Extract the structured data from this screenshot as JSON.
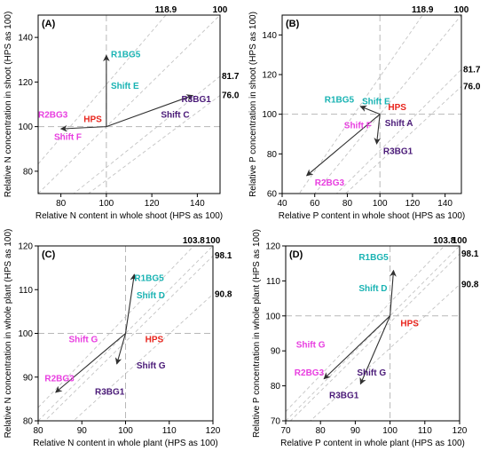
{
  "colors": {
    "cyan": "#19b3b3",
    "magenta": "#e83ee0",
    "red": "#e8241c",
    "purple": "#4a1a78",
    "ref_line": "#c4c4c4",
    "arrow": "#303030"
  },
  "chart_data": [
    {
      "type": "scatter",
      "panel_label": "(A)",
      "xlabel": "Relative N content in whole shoot (HPS as 100)",
      "ylabel": "Relative N concentration in shoot (HPS as 100)",
      "xlim": [
        70,
        150
      ],
      "ylim": [
        70,
        150
      ],
      "xticks": [
        80,
        100,
        120,
        140
      ],
      "yticks": [
        80,
        100,
        120,
        140
      ],
      "origin": [
        100,
        100
      ],
      "ratio_lines": [
        {
          "label": "76.0",
          "ratio": 76.0
        },
        {
          "label": "81.7",
          "ratio": 81.7
        },
        {
          "label": "100",
          "ratio": 100
        },
        {
          "label": "118.9",
          "ratio": 118.9
        }
      ],
      "vectors": [
        {
          "name": "R1BG5",
          "x": 100,
          "y": 132
        },
        {
          "name": "R2BG3",
          "x": 80,
          "y": 99
        },
        {
          "name": "R3BG1",
          "x": 138,
          "y": 114
        }
      ],
      "annotations": [
        {
          "text": "R1BG5",
          "x": 102,
          "y": 131,
          "color": "cyan",
          "anchor": "start"
        },
        {
          "text": "Shift E",
          "x": 102,
          "y": 117,
          "color": "cyan",
          "anchor": "start"
        },
        {
          "text": "HPS",
          "x": 90,
          "y": 102,
          "color": "red",
          "anchor": "start"
        },
        {
          "text": "R2BG3",
          "x": 70,
          "y": 104,
          "color": "magenta",
          "anchor": "start"
        },
        {
          "text": "Shift F",
          "x": 77,
          "y": 94,
          "color": "magenta",
          "anchor": "start"
        },
        {
          "text": "Shift C",
          "x": 124,
          "y": 104,
          "color": "purple",
          "anchor": "start"
        },
        {
          "text": "R3BG1",
          "x": 133,
          "y": 111,
          "color": "purple",
          "anchor": "start"
        }
      ]
    },
    {
      "type": "scatter",
      "panel_label": "(B)",
      "xlabel": "Relative P content in whole shoot (HPS as 100)",
      "ylabel": "Relative P concentration in shoot (HPS as 100)",
      "xlim": [
        40,
        150
      ],
      "ylim": [
        60,
        150
      ],
      "xticks": [
        40,
        60,
        80,
        100,
        120,
        140
      ],
      "yticks": [
        60,
        80,
        100,
        120,
        140
      ],
      "origin": [
        100,
        100
      ],
      "ratio_lines": [
        {
          "label": "76.0",
          "ratio": 76.0
        },
        {
          "label": "81.7",
          "ratio": 81.7
        },
        {
          "label": "100",
          "ratio": 100
        },
        {
          "label": "118.9",
          "ratio": 118.9
        }
      ],
      "vectors": [
        {
          "name": "R1BG5",
          "x": 88,
          "y": 104
        },
        {
          "name": "R2BG3",
          "x": 55,
          "y": 69
        },
        {
          "name": "R3BG1",
          "x": 98,
          "y": 85
        }
      ],
      "annotations": [
        {
          "text": "R1BG5",
          "x": 66,
          "y": 106,
          "color": "cyan",
          "anchor": "start"
        },
        {
          "text": "Shift E",
          "x": 89,
          "y": 105,
          "color": "cyan",
          "anchor": "start"
        },
        {
          "text": "HPS",
          "x": 105,
          "y": 102,
          "color": "red",
          "anchor": "start"
        },
        {
          "text": "Shift A",
          "x": 103,
          "y": 94,
          "color": "purple",
          "anchor": "start"
        },
        {
          "text": "Shift F",
          "x": 78,
          "y": 93,
          "color": "magenta",
          "anchor": "start"
        },
        {
          "text": "R3BG1",
          "x": 102,
          "y": 80,
          "color": "purple",
          "anchor": "start"
        },
        {
          "text": "R2BG3",
          "x": 60,
          "y": 64,
          "color": "magenta",
          "anchor": "start"
        }
      ]
    },
    {
      "type": "scatter",
      "panel_label": "(C)",
      "xlabel": "Relative N content in whole plant (HPS as 100)",
      "ylabel": "Relative N concentration in whole plant (HPS as 100)",
      "xlim": [
        80,
        120
      ],
      "ylim": [
        80,
        120
      ],
      "xticks": [
        80,
        90,
        100,
        110,
        120
      ],
      "yticks": [
        80,
        90,
        100,
        110,
        120
      ],
      "origin": [
        100,
        100
      ],
      "ratio_lines": [
        {
          "label": "90.8",
          "ratio": 90.8
        },
        {
          "label": "98.1",
          "ratio": 98.1
        },
        {
          "label": "100",
          "ratio": 100
        },
        {
          "label": "103.8",
          "ratio": 103.8
        }
      ],
      "vectors": [
        {
          "name": "R1BG5",
          "x": 102,
          "y": 113.5
        },
        {
          "name": "R2BG3",
          "x": 84,
          "y": 86.5
        },
        {
          "name": "R3BG1",
          "x": 98,
          "y": 93
        }
      ],
      "annotations": [
        {
          "text": "R1BG5",
          "x": 102,
          "y": 112,
          "color": "cyan",
          "anchor": "start"
        },
        {
          "text": "Shift D",
          "x": 102.5,
          "y": 108,
          "color": "cyan",
          "anchor": "start"
        },
        {
          "text": "Shift G",
          "x": 87,
          "y": 98,
          "color": "magenta",
          "anchor": "start"
        },
        {
          "text": "HPS",
          "x": 104.5,
          "y": 98,
          "color": "red",
          "anchor": "start"
        },
        {
          "text": "R2BG3",
          "x": 81.5,
          "y": 89,
          "color": "magenta",
          "anchor": "start"
        },
        {
          "text": "Shift G",
          "x": 102.5,
          "y": 92,
          "color": "purple",
          "anchor": "start"
        },
        {
          "text": "R3BG1",
          "x": 93,
          "y": 86,
          "color": "purple",
          "anchor": "start"
        }
      ]
    },
    {
      "type": "scatter",
      "panel_label": "(D)",
      "xlabel": "Relative P content in whole plant (HPS as 100)",
      "ylabel": "Relative P concentration in whole plant (HPS as 100)",
      "xlim": [
        70,
        120
      ],
      "ylim": [
        70,
        120
      ],
      "xticks": [
        70,
        80,
        90,
        100,
        110,
        120
      ],
      "yticks": [
        70,
        80,
        90,
        100,
        110,
        120
      ],
      "origin": [
        100,
        100
      ],
      "ratio_lines": [
        {
          "label": "90.8",
          "ratio": 90.8
        },
        {
          "label": "98.1",
          "ratio": 98.1
        },
        {
          "label": "100",
          "ratio": 100
        },
        {
          "label": "103.8",
          "ratio": 103.8
        }
      ],
      "vectors": [
        {
          "name": "R1BG5",
          "x": 101,
          "y": 113
        },
        {
          "name": "R2BG3",
          "x": 81,
          "y": 82
        },
        {
          "name": "R3BG1",
          "x": 91.5,
          "y": 80.5
        }
      ],
      "annotations": [
        {
          "text": "R1BG5",
          "x": 91,
          "y": 116,
          "color": "cyan",
          "anchor": "start"
        },
        {
          "text": "Shift D",
          "x": 91,
          "y": 107,
          "color": "cyan",
          "anchor": "start"
        },
        {
          "text": "HPS",
          "x": 103,
          "y": 97,
          "color": "red",
          "anchor": "start"
        },
        {
          "text": "Shift G",
          "x": 73,
          "y": 91,
          "color": "magenta",
          "anchor": "start"
        },
        {
          "text": "R2BG3",
          "x": 72.5,
          "y": 83,
          "color": "magenta",
          "anchor": "start"
        },
        {
          "text": "Shift G",
          "x": 90.5,
          "y": 83,
          "color": "purple",
          "anchor": "start"
        },
        {
          "text": "R3BG1",
          "x": 82.5,
          "y": 76.5,
          "color": "purple",
          "anchor": "start"
        }
      ]
    }
  ]
}
